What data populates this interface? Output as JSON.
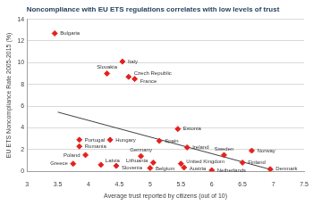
{
  "chart_data": {
    "type": "scatter",
    "title": "Noncompliance with EU ETS regulations correlates with low levels of trust",
    "x_label": "Average trust reported by citizens (out of 10)",
    "y_label": "EU ETS Noncompliance Rate 2005-2015 (%)",
    "labels": [
      "Bulgaria",
      "Italy",
      "Slovakia",
      "Czech Republic",
      "France",
      "Estonia",
      "Portugal",
      "Hungary",
      "Spain",
      "Ireland",
      "Romania",
      "Poland",
      "Greece",
      "Germany",
      "Latvia",
      "Slovenia",
      "Lithuania",
      "Belgium",
      "United Kingdom",
      "Austria",
      "Netherlands",
      "Sweden",
      "Norway",
      "Finland",
      "Denmark"
    ],
    "x": [
      3.45,
      4.55,
      4.3,
      4.65,
      4.75,
      5.45,
      3.85,
      4.35,
      5.15,
      5.6,
      3.85,
      3.95,
      3.75,
      4.85,
      4.2,
      4.45,
      5.05,
      5.0,
      5.5,
      5.55,
      6.0,
      6.2,
      6.65,
      6.5,
      6.95
    ],
    "values": [
      12.7,
      10.1,
      9.0,
      8.7,
      8.5,
      3.9,
      2.9,
      2.9,
      2.8,
      2.2,
      2.3,
      1.5,
      0.7,
      1.4,
      0.6,
      0.5,
      0.8,
      0.3,
      0.7,
      0.35,
      0.1,
      1.5,
      1.9,
      0.8,
      0.2
    ],
    "color": "#e3211c",
    "marker": "diamond",
    "trend_line": {
      "x": [
        3.5,
        7.0
      ],
      "values": [
        5.45,
        0.1
      ],
      "color": "#404040"
    },
    "xlim": [
      3,
      7.5
    ],
    "xticks": [
      3,
      3.5,
      4,
      4.5,
      5,
      5.5,
      6,
      6.5,
      7,
      7.5
    ],
    "ylim": [
      0,
      14
    ],
    "yticks": [
      0,
      2,
      4,
      6,
      8,
      10,
      12,
      14
    ],
    "grid": true
  }
}
